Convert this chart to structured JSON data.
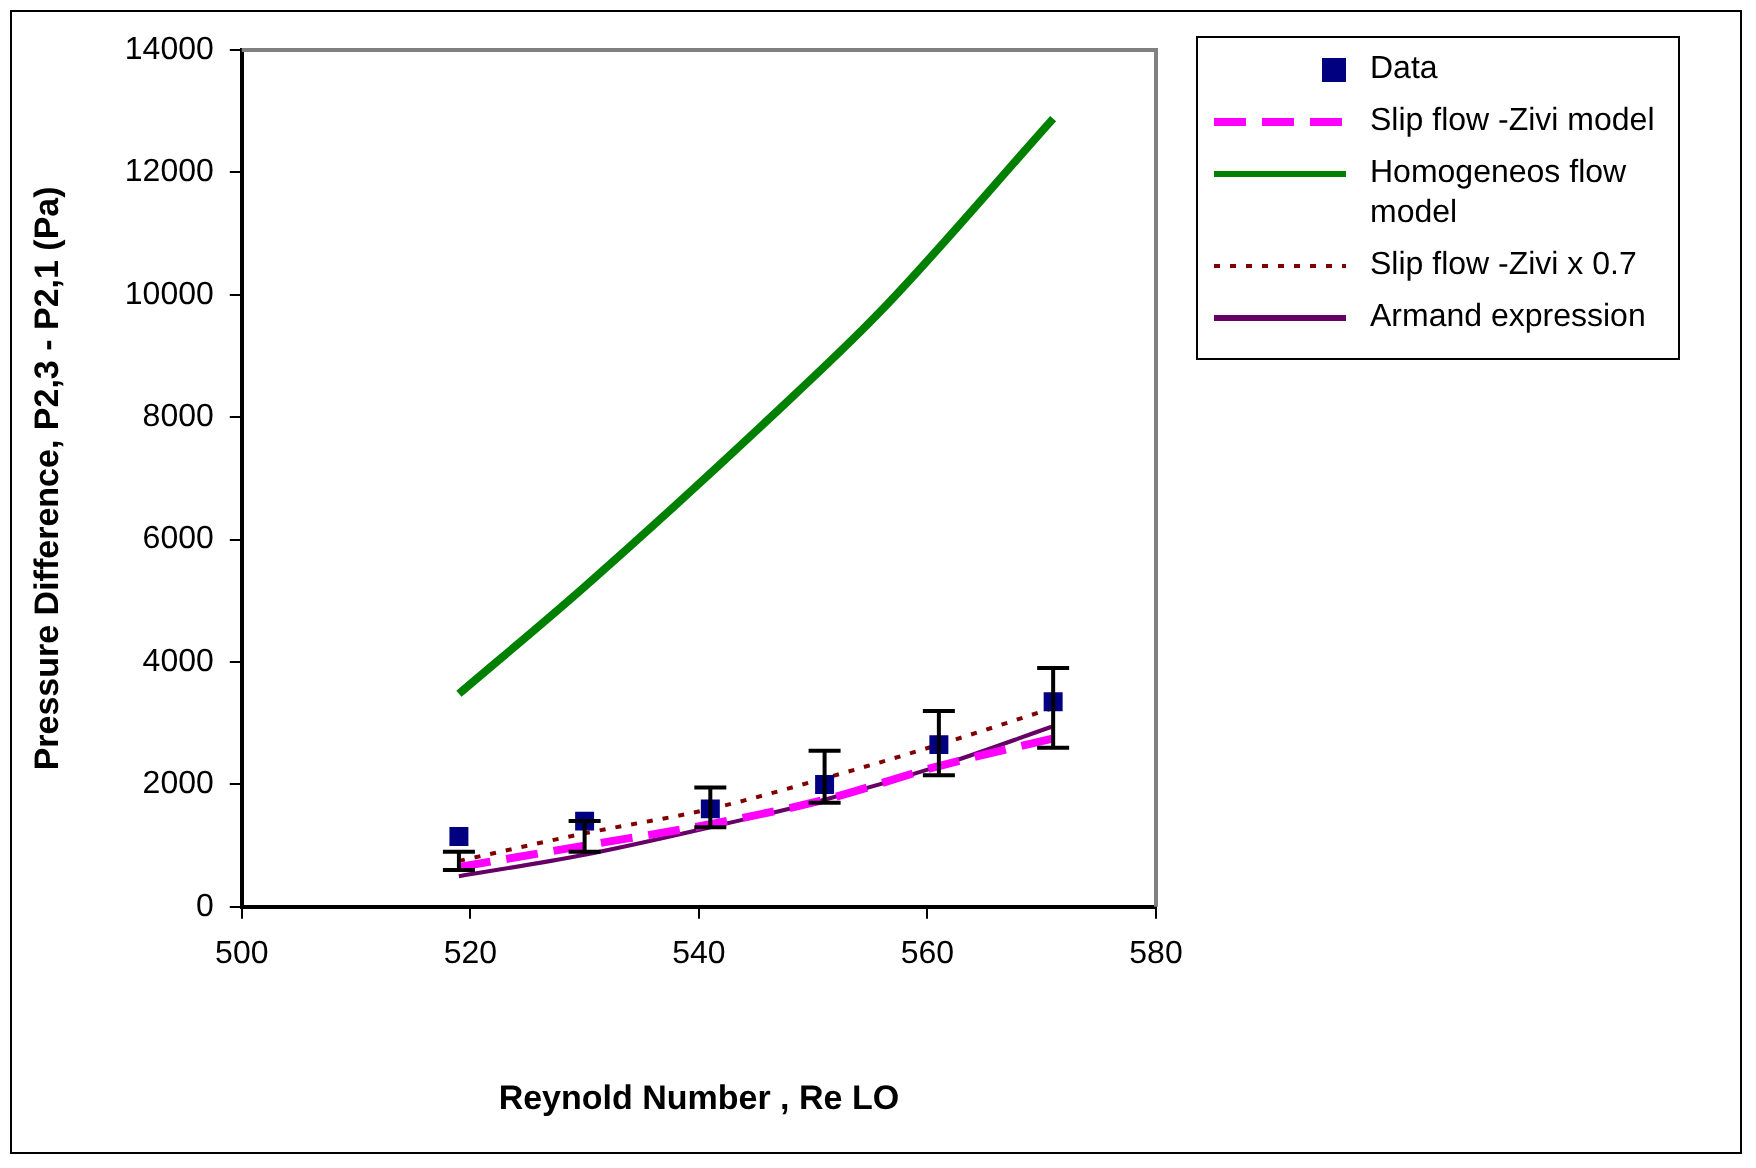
{
  "chart_data": {
    "type": "line",
    "xlabel": "Reynold Number , Re LO",
    "ylabel": "Pressure Difference, P2,3 - P2,1 (Pa)",
    "xlim": [
      500,
      580
    ],
    "xticks": [
      500,
      520,
      540,
      560,
      580
    ],
    "ylim": [
      0,
      14000
    ],
    "yticks": [
      0,
      2000,
      4000,
      6000,
      8000,
      10000,
      12000,
      14000
    ],
    "grid": false,
    "legend": "right",
    "series": [
      {
        "name": "Data",
        "type": "scatter",
        "marker": "square",
        "color": "#000080",
        "x": [
          519,
          530,
          541,
          551,
          561,
          571
        ],
        "values": [
          1150,
          1400,
          1600,
          2000,
          2650,
          3350
        ],
        "errors": [
          [
            600,
            900
          ],
          [
            900,
            1400
          ],
          [
            1300,
            1950
          ],
          [
            1700,
            2550
          ],
          [
            2150,
            3200
          ],
          [
            2600,
            3900
          ]
        ]
      },
      {
        "name": "Slip flow -Zivi model",
        "line_style": "dashed",
        "color": "#ff00ff",
        "x": [
          519,
          530,
          541,
          551,
          561,
          571
        ],
        "values": [
          650,
          1000,
          1350,
          1750,
          2300,
          2750
        ]
      },
      {
        "name": "Homogeneos flow model",
        "line_style": "solid",
        "color": "#008000",
        "x": [
          519,
          530,
          546,
          556,
          571
        ],
        "values": [
          3480,
          5230,
          7950,
          9750,
          12880
        ]
      },
      {
        "name": "Slip flow -Zivi x 0.7",
        "line_style": "dotted",
        "color": "#800000",
        "x": [
          519,
          530,
          541,
          551,
          561,
          571
        ],
        "values": [
          750,
          1200,
          1600,
          2100,
          2650,
          3250
        ]
      },
      {
        "name": "Armand expression",
        "line_style": "solid",
        "color": "#660066",
        "x": [
          519,
          530,
          541,
          551,
          561,
          571
        ],
        "values": [
          500,
          850,
          1300,
          1750,
          2300,
          2950
        ]
      }
    ]
  }
}
